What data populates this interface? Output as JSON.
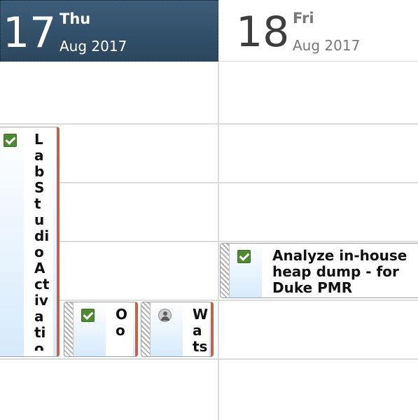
{
  "header": {
    "today": {
      "day_number": "17",
      "weekday": "Thu",
      "month_year": "Aug 2017"
    },
    "next": {
      "day_number": "18",
      "weekday": "Fri",
      "month_year": "Aug 2017"
    }
  },
  "events": [
    {
      "title": "LabStudioActivation",
      "icon": "check-icon",
      "day": "Thu"
    },
    {
      "title": "O'Co",
      "icon": "check-icon",
      "day": "Thu"
    },
    {
      "title": "Watso",
      "icon": "person-icon",
      "day": "Thu"
    },
    {
      "title": "Analyze in-house heap dump - for Duke PMR",
      "icon": "check-icon",
      "day": "Fri"
    }
  ],
  "colors": {
    "today_header": "#2c465d",
    "event_accent": "#c2624d",
    "check_green": "#4e8a33"
  }
}
